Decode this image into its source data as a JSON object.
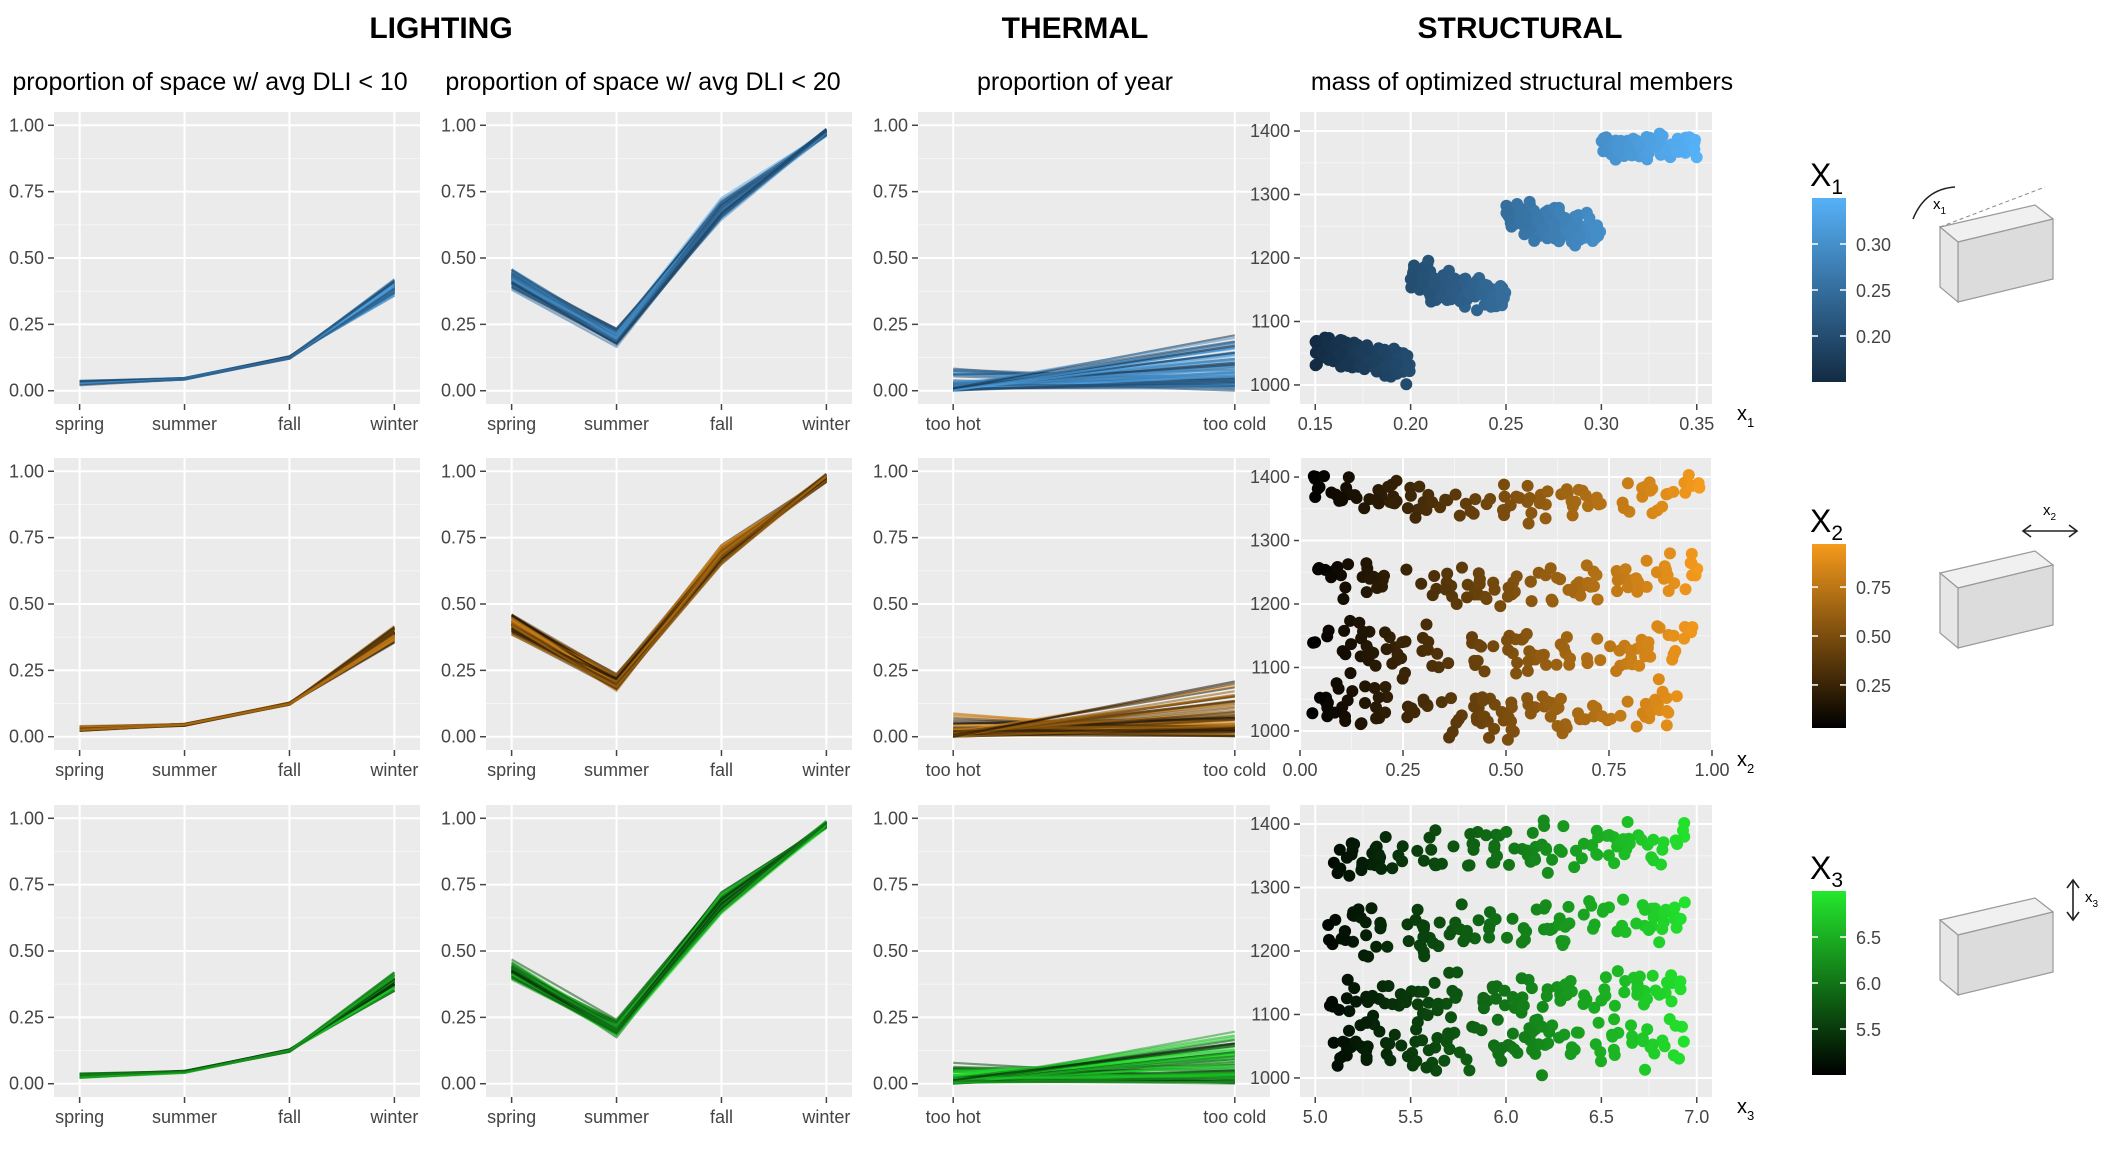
{
  "headers": {
    "lighting": "LIGHTING",
    "thermal": "THERMAL",
    "structural": "STRUCTURAL"
  },
  "subtitles": {
    "dli10": "proportion of space w/ avg DLI < 10",
    "dli20": "proportion of space w/ avg DLI < 20",
    "thermal": "proportion of year",
    "structural": "mass of optimized structural members"
  },
  "rows": [
    {
      "variable": "x",
      "subscript": "1",
      "color_low": "#132b43",
      "color_high": "#56b1f7"
    },
    {
      "variable": "x",
      "subscript": "2",
      "color_low": "#000000",
      "color_high": "#f59a1c"
    },
    {
      "variable": "x",
      "subscript": "3",
      "color_low": "#000000",
      "color_high": "#24e82e"
    }
  ],
  "chart_data": [
    {
      "type": "line",
      "panel": "lighting-dli10",
      "categories": [
        "spring",
        "summer",
        "fall",
        "winter"
      ],
      "y_ticks": [
        "0.00",
        "0.25",
        "0.50",
        "0.75",
        "1.00"
      ],
      "ylim": [
        -0.05,
        1.05
      ],
      "grid": true,
      "series_band": {
        "min": [
          0.02,
          0.04,
          0.12,
          0.35
        ],
        "max": [
          0.04,
          0.05,
          0.13,
          0.42
        ]
      },
      "note": "many overlaid lines per row, coloured by x1 / x2 / x3"
    },
    {
      "type": "line",
      "panel": "lighting-dli20",
      "categories": [
        "spring",
        "summer",
        "fall",
        "winter"
      ],
      "y_ticks": [
        "0.00",
        "0.25",
        "0.50",
        "0.75",
        "1.00"
      ],
      "ylim": [
        -0.05,
        1.05
      ],
      "grid": true,
      "series_band": {
        "min": [
          0.38,
          0.16,
          0.64,
          0.96
        ],
        "max": [
          0.47,
          0.25,
          0.73,
          0.99
        ]
      }
    },
    {
      "type": "line",
      "panel": "thermal",
      "categories": [
        "too hot",
        "too cold"
      ],
      "y_ticks": [
        "0.00",
        "0.25",
        "0.50",
        "0.75",
        "1.00"
      ],
      "ylim": [
        -0.05,
        1.05
      ],
      "grid": true,
      "series_band": {
        "min": [
          0.0,
          0.0
        ],
        "max": [
          0.1,
          0.23
        ]
      }
    },
    {
      "type": "scatter",
      "panel": "structural-x1",
      "x_ticks": [
        "0.15",
        "0.20",
        "0.25",
        "0.30",
        "0.35"
      ],
      "y_ticks": [
        "1000",
        "1100",
        "1200",
        "1300",
        "1400"
      ],
      "xlim": [
        0.142,
        0.358
      ],
      "ylim": [
        970,
        1430
      ],
      "clusters": [
        {
          "x": [
            0.15,
            0.2
          ],
          "y": [
            980,
            1110
          ]
        },
        {
          "x": [
            0.2,
            0.25
          ],
          "y": [
            1085,
            1220
          ]
        },
        {
          "x": [
            0.25,
            0.3
          ],
          "y": [
            1185,
            1320
          ]
        },
        {
          "x": [
            0.3,
            0.35
          ],
          "y": [
            1330,
            1420
          ]
        }
      ],
      "colorbar": {
        "title": "x1",
        "ticks": [
          "0.20",
          "0.25",
          "0.30"
        ],
        "range": [
          0.15,
          0.35
        ]
      }
    },
    {
      "type": "scatter",
      "panel": "structural-x2",
      "x_ticks": [
        "0.00",
        "0.25",
        "0.50",
        "0.75",
        "1.00"
      ],
      "y_ticks": [
        "1000",
        "1100",
        "1200",
        "1300",
        "1400"
      ],
      "xlim": [
        0.0,
        1.0
      ],
      "ylim": [
        970,
        1430
      ],
      "bands": [
        {
          "y_center": 1040,
          "y_spread": 50
        },
        {
          "y_center": 1130,
          "y_spread": 60
        },
        {
          "y_center": 1240,
          "y_spread": 50
        },
        {
          "y_center": 1370,
          "y_spread": 40
        }
      ],
      "colorbar": {
        "title": "x2",
        "ticks": [
          "0.25",
          "0.50",
          "0.75"
        ],
        "range": [
          0.03,
          0.97
        ]
      }
    },
    {
      "type": "scatter",
      "panel": "structural-x3",
      "x_ticks": [
        "5.0",
        "5.5",
        "6.0",
        "6.5",
        "7.0"
      ],
      "y_ticks": [
        "1000",
        "1100",
        "1200",
        "1300",
        "1400"
      ],
      "xlim": [
        4.92,
        7.08
      ],
      "ylim": [
        970,
        1430
      ],
      "bands": [
        {
          "y_center": 1050,
          "y_spread": 55
        },
        {
          "y_center": 1130,
          "y_spread": 55
        },
        {
          "y_center": 1240,
          "y_spread": 55
        },
        {
          "y_center": 1360,
          "y_spread": 50
        }
      ],
      "colorbar": {
        "title": "x3",
        "ticks": [
          "5.5",
          "6.0",
          "6.5"
        ],
        "range": [
          5.0,
          7.0
        ]
      }
    }
  ]
}
